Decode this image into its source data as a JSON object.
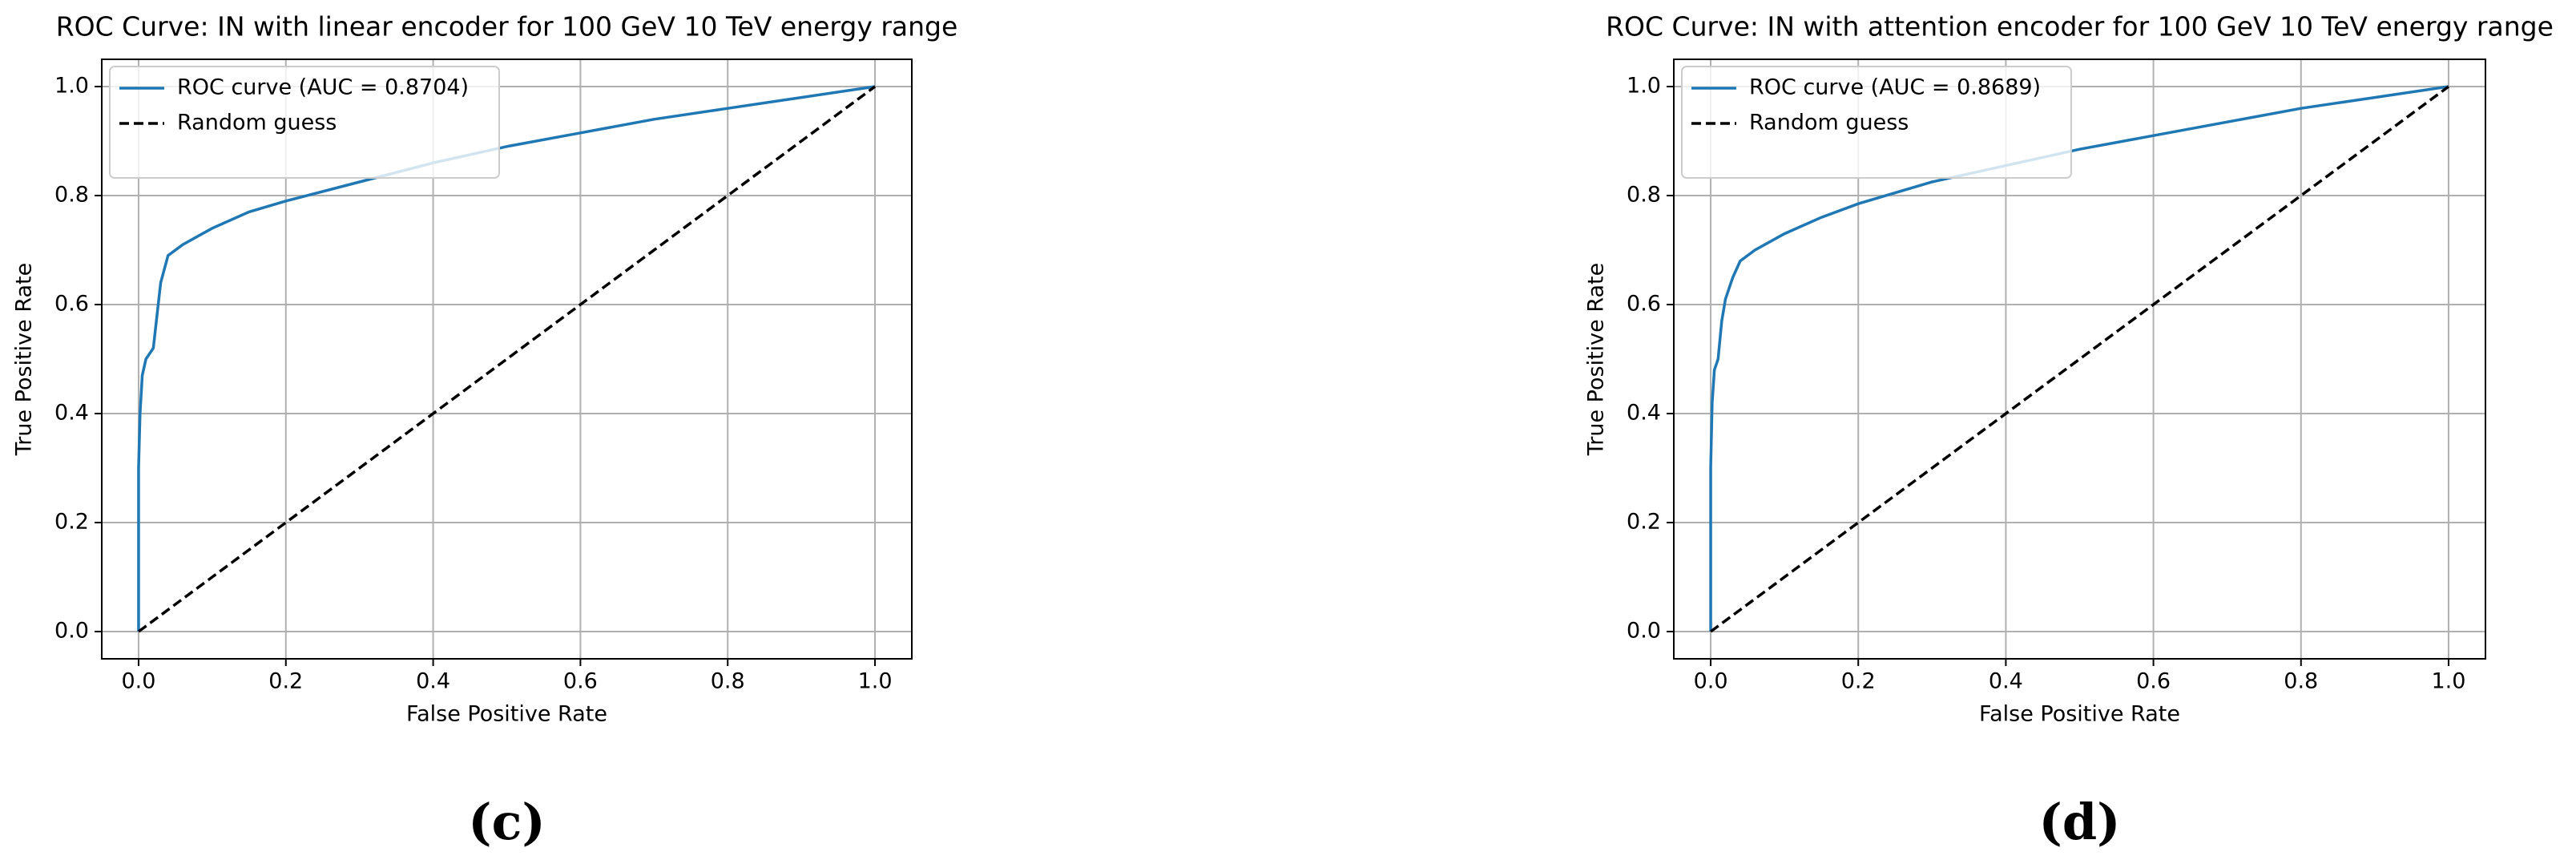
{
  "chart_data": [
    {
      "type": "line",
      "title": "ROC Curve: IN with linear encoder for 100 GeV 10 TeV energy range",
      "xlabel": "False Positive Rate",
      "ylabel": "True Positive Rate",
      "caption": "(c)",
      "xlim": [
        -0.05,
        1.05
      ],
      "ylim": [
        -0.05,
        1.05
      ],
      "xticks": [
        {
          "value": 0,
          "label": "0.0"
        },
        0.2,
        0.4,
        0.6,
        0.8,
        {
          "value": 1,
          "label": "1.0"
        }
      ],
      "yticks": [
        {
          "value": 0,
          "label": "0.0"
        },
        0.2,
        0.4,
        0.6,
        0.8,
        {
          "value": 1,
          "label": "1.0"
        }
      ],
      "grid": true,
      "legend": "upper left",
      "series": [
        {
          "name": "ROC curve (AUC = 0.8704)",
          "color": "#1f77b4",
          "linestyle": "solid",
          "x": [
            0,
            0,
            0.002,
            0.005,
            0.01,
            0.02,
            0.025,
            0.03,
            0.04,
            0.06,
            0.1,
            0.15,
            0.2,
            0.3,
            0.4,
            0.5,
            0.6,
            0.7,
            0.8,
            0.9,
            1
          ],
          "values": [
            0,
            0.3,
            0.4,
            0.47,
            0.5,
            0.52,
            0.58,
            0.64,
            0.69,
            0.71,
            0.74,
            0.77,
            0.79,
            0.825,
            0.86,
            0.89,
            0.915,
            0.94,
            0.96,
            0.98,
            1
          ]
        },
        {
          "name": "Random guess",
          "color": "#000000",
          "linestyle": "dashed",
          "x": [
            0,
            1
          ],
          "values": [
            0,
            1
          ]
        }
      ]
    },
    {
      "type": "line",
      "title": "ROC Curve: IN with attention encoder for 100 GeV 10 TeV energy range",
      "xlabel": "False Positive Rate",
      "ylabel": "True Positive Rate",
      "caption": "(d)",
      "xlim": [
        -0.05,
        1.05
      ],
      "ylim": [
        -0.05,
        1.05
      ],
      "xticks": [
        {
          "value": 0,
          "label": "0.0"
        },
        0.2,
        0.4,
        0.6,
        0.8,
        {
          "value": 1,
          "label": "1.0"
        }
      ],
      "yticks": [
        {
          "value": 0,
          "label": "0.0"
        },
        0.2,
        0.4,
        0.6,
        0.8,
        {
          "value": 1,
          "label": "1.0"
        }
      ],
      "grid": true,
      "legend": "upper left",
      "series": [
        {
          "name": "ROC curve (AUC = 0.8689)",
          "color": "#1f77b4",
          "linestyle": "solid",
          "x": [
            0,
            0,
            0.002,
            0.005,
            0.01,
            0.015,
            0.02,
            0.03,
            0.04,
            0.06,
            0.1,
            0.15,
            0.2,
            0.3,
            0.4,
            0.5,
            0.6,
            0.7,
            0.8,
            0.9,
            1
          ],
          "values": [
            0,
            0.3,
            0.42,
            0.48,
            0.5,
            0.57,
            0.61,
            0.65,
            0.68,
            0.7,
            0.73,
            0.76,
            0.785,
            0.825,
            0.855,
            0.885,
            0.91,
            0.935,
            0.96,
            0.98,
            1
          ]
        },
        {
          "name": "Random guess",
          "color": "#000000",
          "linestyle": "dashed",
          "x": [
            0,
            1
          ],
          "values": [
            0,
            1
          ]
        }
      ]
    }
  ]
}
